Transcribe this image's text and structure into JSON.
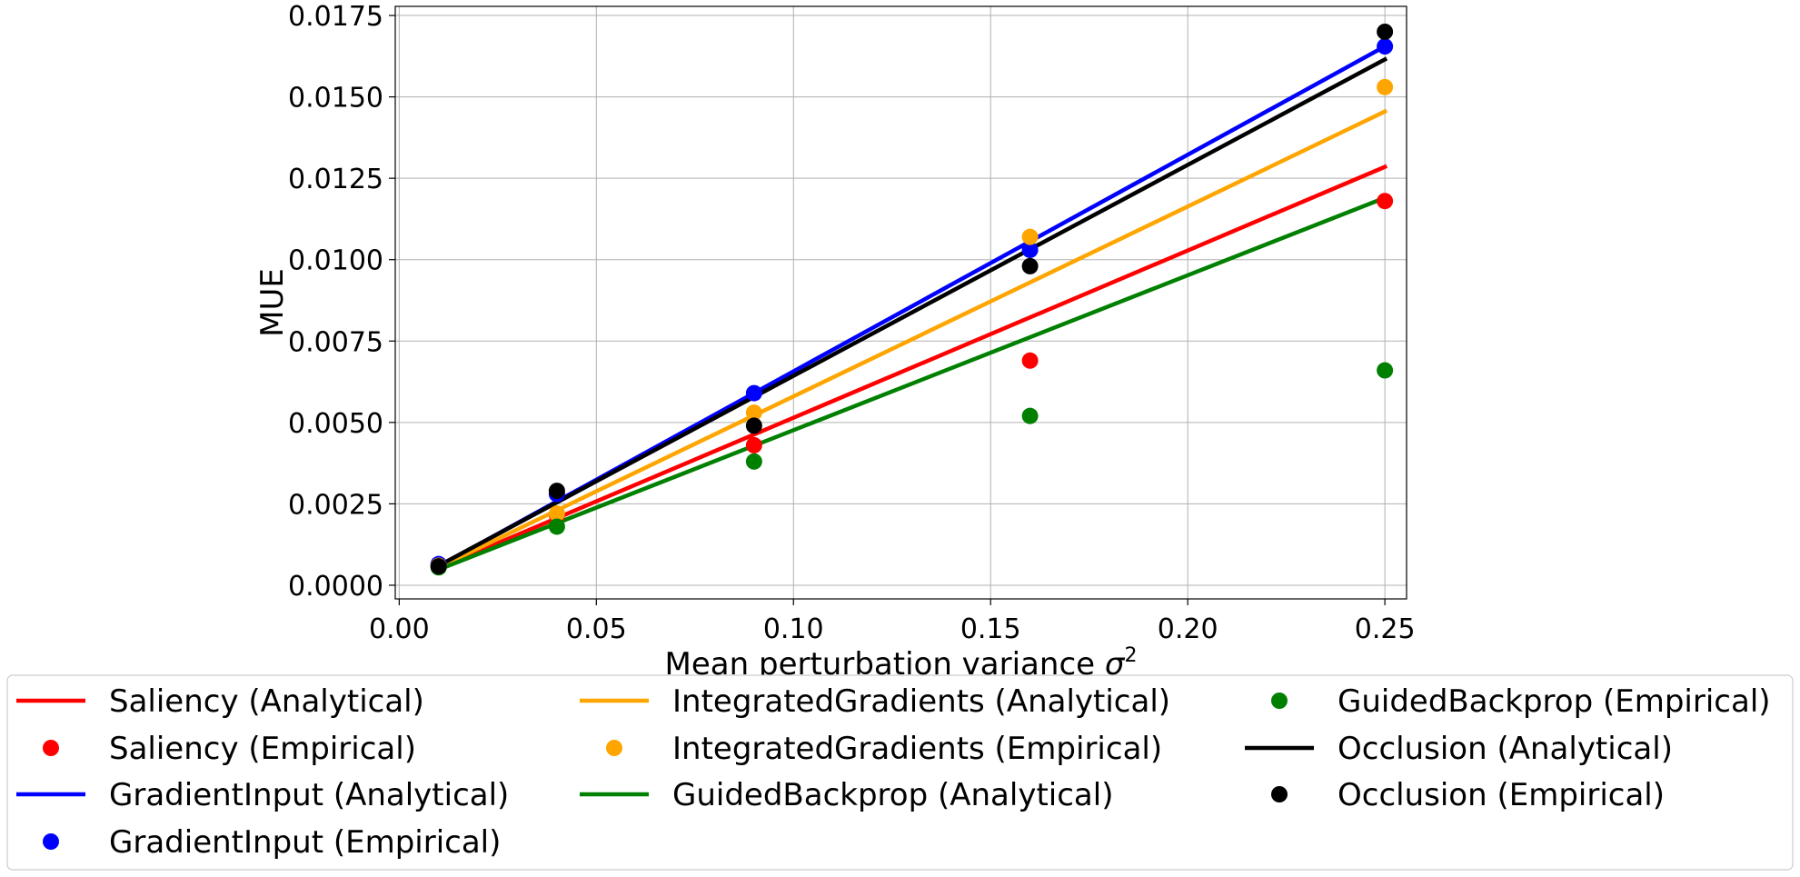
{
  "chart_data": {
    "type": "scatter",
    "xlabel": "Mean perturbation variance σ²",
    "xlabel_main": "Mean perturbation variance ",
    "xlabel_sym": "σ",
    "xlabel_sup": "2",
    "ylabel": "MUE",
    "xlim": [
      -0.001,
      0.2555
    ],
    "ylim": [
      -0.00042,
      0.01778
    ],
    "x_ticks": [
      0.0,
      0.05,
      0.1,
      0.15,
      0.2,
      0.25
    ],
    "x_tick_labels": [
      "0.00",
      "0.05",
      "0.10",
      "0.15",
      "0.20",
      "0.25"
    ],
    "y_ticks": [
      0.0,
      0.0025,
      0.005,
      0.0075,
      0.01,
      0.0125,
      0.015,
      0.0175
    ],
    "y_tick_labels": [
      "0.0000",
      "0.0025",
      "0.0050",
      "0.0075",
      "0.0100",
      "0.0125",
      "0.0150",
      "0.0175"
    ],
    "grid": true,
    "legend_position": "bottom",
    "x": [
      0.01,
      0.04,
      0.09,
      0.16,
      0.25
    ],
    "series": [
      {
        "name": "Saliency (Analytical)",
        "kind": "line",
        "color": "#ff0000",
        "x": [
          0.01,
          0.25
        ],
        "values": [
          0.00052,
          0.01285
        ]
      },
      {
        "name": "Saliency (Empirical)",
        "kind": "scatter",
        "color": "#ff0000",
        "values": [
          0.0006,
          0.00215,
          0.0043,
          0.0069,
          0.0118
        ]
      },
      {
        "name": "GradientInput (Analytical)",
        "kind": "line",
        "color": "#0000ff",
        "x": [
          0.01,
          0.25
        ],
        "values": [
          0.00058,
          0.01655
        ]
      },
      {
        "name": "GradientInput (Empirical)",
        "kind": "scatter",
        "color": "#0000ff",
        "values": [
          0.00065,
          0.0028,
          0.0059,
          0.0103,
          0.01655
        ]
      },
      {
        "name": "IntegratedGradients (Analytical)",
        "kind": "line",
        "color": "#ffa500",
        "x": [
          0.01,
          0.25
        ],
        "values": [
          0.00055,
          0.01455
        ]
      },
      {
        "name": "IntegratedGradients (Empirical)",
        "kind": "scatter",
        "color": "#ffa500",
        "values": [
          0.0006,
          0.0022,
          0.0053,
          0.0107,
          0.0153
        ]
      },
      {
        "name": "GuidedBackprop (Analytical)",
        "kind": "line",
        "color": "#008000",
        "x": [
          0.01,
          0.25
        ],
        "values": [
          0.00048,
          0.0119
        ]
      },
      {
        "name": "GuidedBackprop (Empirical)",
        "kind": "scatter",
        "color": "#008000",
        "values": [
          0.00055,
          0.0018,
          0.0038,
          0.0052,
          0.0066
        ]
      },
      {
        "name": "Occlusion (Analytical)",
        "kind": "line",
        "color": "#000000",
        "x": [
          0.01,
          0.25
        ],
        "values": [
          0.0006,
          0.01615
        ]
      },
      {
        "name": "Occlusion (Empirical)",
        "kind": "scatter",
        "color": "#000000",
        "values": [
          0.00058,
          0.0029,
          0.0049,
          0.0098,
          0.017
        ]
      }
    ],
    "legend_columns": [
      [
        "Saliency (Analytical)",
        "Saliency (Empirical)",
        "GradientInput (Analytical)",
        "GradientInput (Empirical)"
      ],
      [
        "IntegratedGradients (Analytical)",
        "IntegratedGradients (Empirical)",
        "GuidedBackprop (Analytical)"
      ],
      [
        "GuidedBackprop (Empirical)",
        "Occlusion (Analytical)",
        "Occlusion (Empirical)"
      ]
    ]
  }
}
